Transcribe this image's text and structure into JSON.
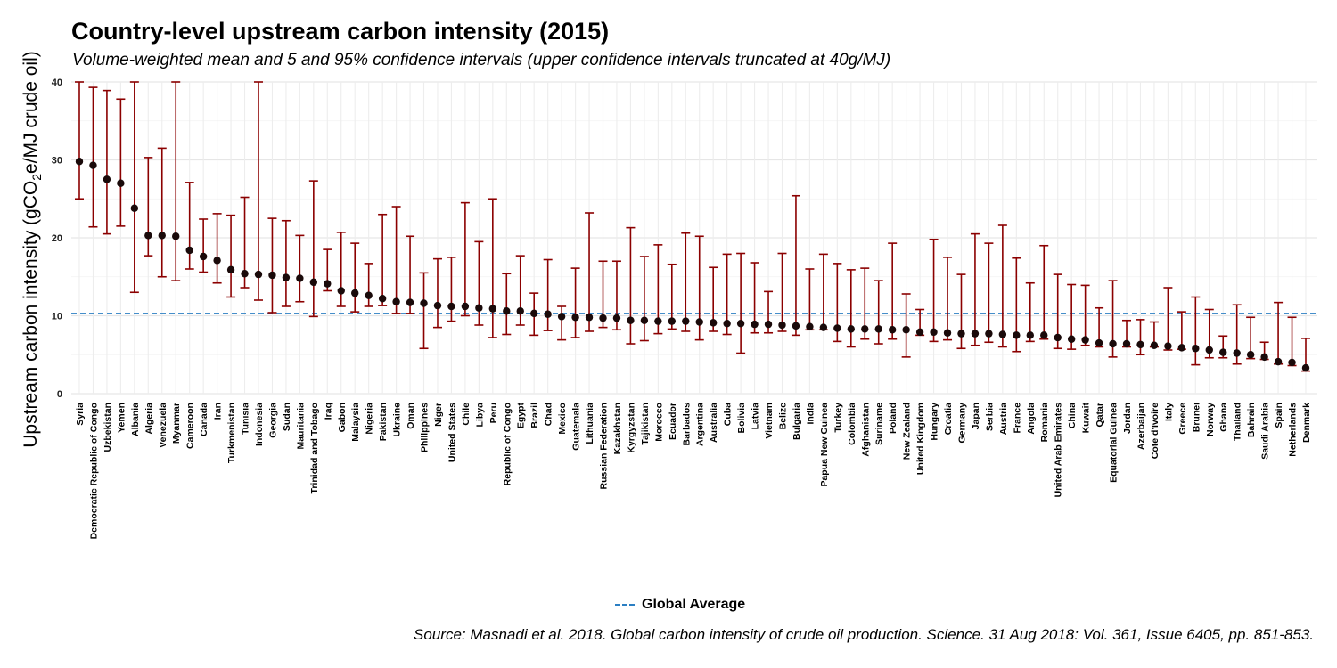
{
  "chart_data": {
    "type": "scatter",
    "title": "Country-level upstream carbon intensity (2015)",
    "subtitle": "Volume-weighted mean and 5 and 95% confidence intervals (upper confidence intervals truncated at 40g/MJ)",
    "ylabel_prefix": "Upstream carbon intensity (gCO",
    "ylabel_sub": "2",
    "ylabel_suffix": "e/MJ crude oil)",
    "xlabel": "",
    "ylim": [
      0,
      40
    ],
    "yticks": [
      "0",
      "10",
      "20",
      "30",
      "40"
    ],
    "grid": true,
    "global_average": 10.3,
    "legend": {
      "label": "Global Average",
      "position": "bottom"
    },
    "source": "Source: Masnadi et al. 2018. Global carbon intensity of crude oil production. Science. 31 Aug 2018: Vol. 361, Issue 6405, pp. 851-853.",
    "colors": {
      "point": "#1a0a0a",
      "errorbar": "#8b0000",
      "average_line": "#2b7fc3",
      "grid": "#ebebeb"
    },
    "categories": [
      "Syria",
      "Democratic Republic of Congo",
      "Uzbekistan",
      "Yemen",
      "Albania",
      "Algeria",
      "Venezuela",
      "Myanmar",
      "Cameroon",
      "Canada",
      "Iran",
      "Turkmenistan",
      "Tunisia",
      "Indonesia",
      "Georgia",
      "Sudan",
      "Mauritania",
      "Trinidad and Tobago",
      "Iraq",
      "Gabon",
      "Malaysia",
      "Nigeria",
      "Pakistan",
      "Ukraine",
      "Oman",
      "Philippines",
      "Niger",
      "United States",
      "Chile",
      "Libya",
      "Peru",
      "Republic of Congo",
      "Egypt",
      "Brazil",
      "Chad",
      "Mexico",
      "Guatemala",
      "Lithuania",
      "Russian Federation",
      "Kazakhstan",
      "Kyrgyzstan",
      "Tajikistan",
      "Morocco",
      "Ecuador",
      "Barbados",
      "Argentina",
      "Australia",
      "Cuba",
      "Bolivia",
      "Latvia",
      "Vietnam",
      "Belize",
      "Bulgaria",
      "India",
      "Papua New Guinea",
      "Turkey",
      "Colombia",
      "Afghanistan",
      "Suriname",
      "Poland",
      "New Zealand",
      "United Kingdom",
      "Hungary",
      "Croatia",
      "Germany",
      "Japan",
      "Serbia",
      "Austria",
      "France",
      "Angola",
      "Romania",
      "United Arab Emirates",
      "China",
      "Kuwait",
      "Qatar",
      "Equatorial Guinea",
      "Jordan",
      "Azerbaijan",
      "Cote d'Ivoire",
      "Italy",
      "Greece",
      "Brunei",
      "Norway",
      "Ghana",
      "Thailand",
      "Bahrain",
      "Saudi Arabia",
      "Spain",
      "Netherlands",
      "Denmark"
    ],
    "series": [
      {
        "name": "mean",
        "values": [
          29.8,
          29.3,
          27.5,
          27.0,
          23.8,
          20.3,
          20.3,
          20.2,
          18.4,
          17.6,
          17.1,
          15.9,
          15.4,
          15.3,
          15.2,
          14.9,
          14.8,
          14.3,
          14.1,
          13.2,
          12.9,
          12.6,
          12.2,
          11.8,
          11.7,
          11.6,
          11.3,
          11.2,
          11.2,
          11.0,
          10.9,
          10.6,
          10.6,
          10.3,
          10.2,
          9.9,
          9.8,
          9.8,
          9.7,
          9.7,
          9.4,
          9.4,
          9.3,
          9.3,
          9.3,
          9.2,
          9.1,
          9.0,
          9.0,
          8.9,
          8.9,
          8.8,
          8.7,
          8.6,
          8.5,
          8.4,
          8.3,
          8.3,
          8.3,
          8.2,
          8.2,
          7.9,
          7.9,
          7.8,
          7.7,
          7.7,
          7.7,
          7.6,
          7.5,
          7.5,
          7.5,
          7.2,
          7.0,
          6.9,
          6.5,
          6.4,
          6.4,
          6.3,
          6.2,
          6.1,
          5.9,
          5.8,
          5.6,
          5.3,
          5.2,
          5.0,
          4.7,
          4.1,
          4.0,
          3.3
        ]
      },
      {
        "name": "lower",
        "values": [
          25.0,
          21.4,
          20.5,
          21.5,
          13.0,
          17.7,
          15.0,
          14.5,
          16.0,
          15.6,
          14.2,
          12.4,
          13.6,
          12.0,
          10.4,
          11.2,
          11.8,
          9.9,
          13.2,
          11.2,
          10.5,
          11.2,
          11.3,
          10.3,
          10.3,
          5.8,
          8.5,
          9.3,
          10.0,
          8.8,
          7.2,
          7.6,
          8.8,
          7.5,
          8.1,
          6.9,
          7.2,
          8.0,
          8.5,
          8.2,
          6.4,
          6.8,
          7.7,
          8.3,
          8.0,
          6.9,
          8.0,
          7.6,
          5.2,
          7.8,
          7.8,
          8.0,
          7.5,
          8.2,
          8.2,
          6.7,
          6.0,
          7.0,
          6.4,
          7.0,
          4.7,
          7.5,
          6.7,
          6.9,
          5.8,
          6.2,
          6.6,
          6.0,
          5.4,
          6.7,
          7.0,
          5.8,
          5.7,
          6.2,
          6.0,
          4.7,
          6.0,
          5.0,
          6.0,
          5.6,
          5.7,
          3.7,
          4.6,
          4.6,
          3.8,
          4.5,
          4.4,
          3.8,
          3.6,
          2.9
        ]
      },
      {
        "name": "upper",
        "values": [
          40.0,
          39.3,
          38.9,
          37.8,
          40.0,
          30.3,
          31.5,
          40.0,
          27.1,
          22.4,
          23.1,
          22.9,
          25.2,
          40.0,
          22.5,
          22.2,
          20.3,
          27.3,
          18.5,
          20.7,
          19.3,
          16.7,
          23.0,
          24.0,
          20.2,
          15.5,
          17.3,
          17.5,
          24.5,
          19.5,
          25.0,
          15.4,
          17.7,
          12.9,
          17.2,
          11.2,
          16.1,
          23.2,
          17.0,
          17.0,
          21.3,
          17.6,
          19.1,
          16.6,
          20.6,
          20.2,
          16.2,
          17.9,
          18.0,
          16.8,
          13.1,
          18.0,
          25.4,
          16.0,
          17.9,
          16.7,
          15.9,
          16.1,
          14.5,
          19.3,
          12.8,
          10.8,
          19.8,
          17.5,
          15.3,
          20.5,
          19.3,
          21.6,
          17.4,
          14.2,
          19.0,
          15.3,
          14.0,
          13.9,
          11.0,
          14.5,
          9.4,
          9.5,
          9.2,
          13.6,
          10.5,
          12.4,
          10.8,
          7.4,
          11.4,
          9.8,
          6.6,
          11.7,
          9.8,
          7.1
        ]
      }
    ]
  }
}
